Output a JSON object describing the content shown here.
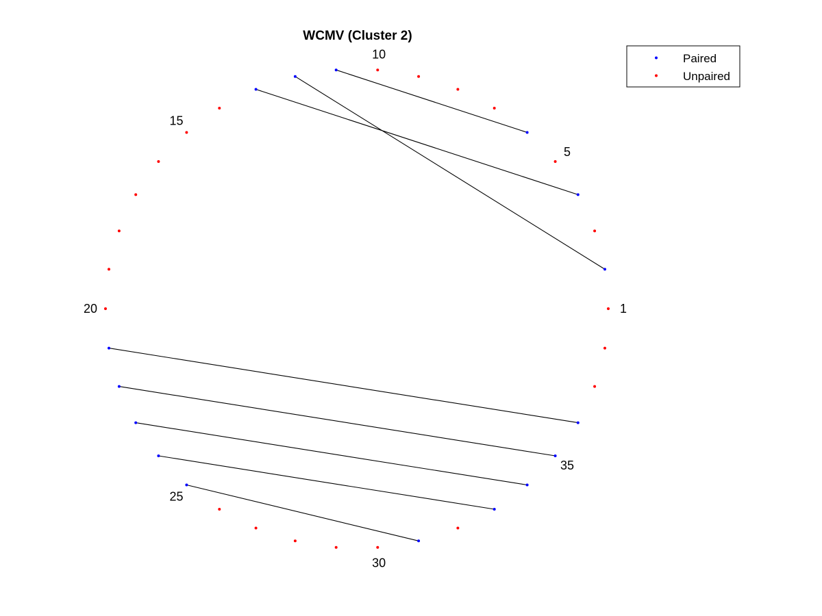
{
  "chart_data": {
    "type": "scatter",
    "layout": "circular",
    "title": "WCMV (Cluster 2)",
    "node_count": 38,
    "node_labels": [
      {
        "node": 1,
        "text": "1"
      },
      {
        "node": 5,
        "text": "5"
      },
      {
        "node": 10,
        "text": "10"
      },
      {
        "node": 15,
        "text": "15"
      },
      {
        "node": 20,
        "text": "20"
      },
      {
        "node": 25,
        "text": "25"
      },
      {
        "node": 30,
        "text": "30"
      },
      {
        "node": 35,
        "text": "35"
      }
    ],
    "pairs": [
      [
        2,
        12
      ],
      [
        4,
        13
      ],
      [
        6,
        11
      ],
      [
        21,
        36
      ],
      [
        22,
        35
      ],
      [
        23,
        34
      ],
      [
        24,
        33
      ],
      [
        25,
        31
      ]
    ],
    "series": [
      {
        "name": "Paired",
        "color": "#0000ff"
      },
      {
        "name": "Unpaired",
        "color": "#ff0000"
      }
    ],
    "edge_color": "#000000",
    "grid": false,
    "legend_position": "top-right"
  }
}
